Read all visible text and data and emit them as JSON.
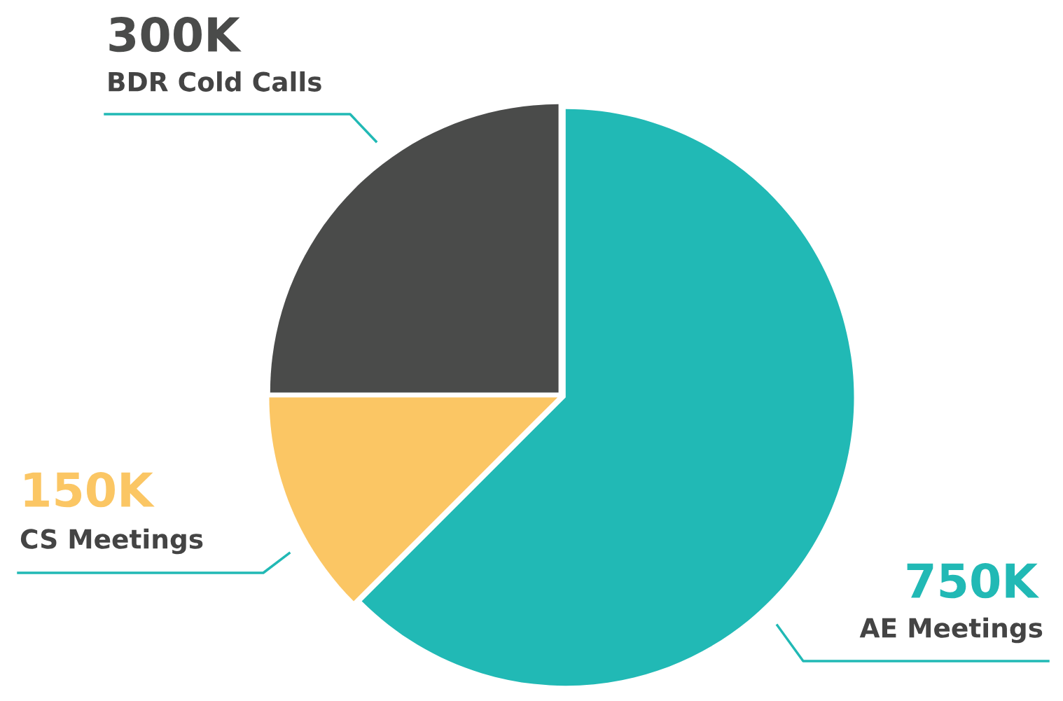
{
  "chart_data": {
    "type": "pie",
    "categories": [
      "AE Meetings",
      "CS Meetings",
      "BDR Cold Calls"
    ],
    "values": [
      750000,
      150000,
      300000
    ],
    "value_labels": [
      "750K",
      "150K",
      "300K"
    ],
    "colors": [
      "#21b9b5",
      "#fbc664",
      "#4a4b4a"
    ]
  }
}
